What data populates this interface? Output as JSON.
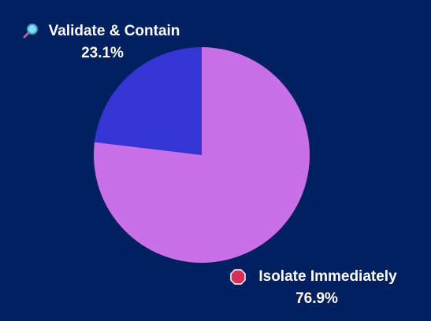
{
  "chart_data": {
    "type": "pie",
    "categories": [
      "Isolate Immediately",
      "Validate & Contain"
    ],
    "values": [
      76.9,
      23.1
    ],
    "value_labels": [
      "76.9%",
      "23.1%"
    ],
    "colors": [
      "#c96fe8",
      "#3535d4"
    ]
  }
}
